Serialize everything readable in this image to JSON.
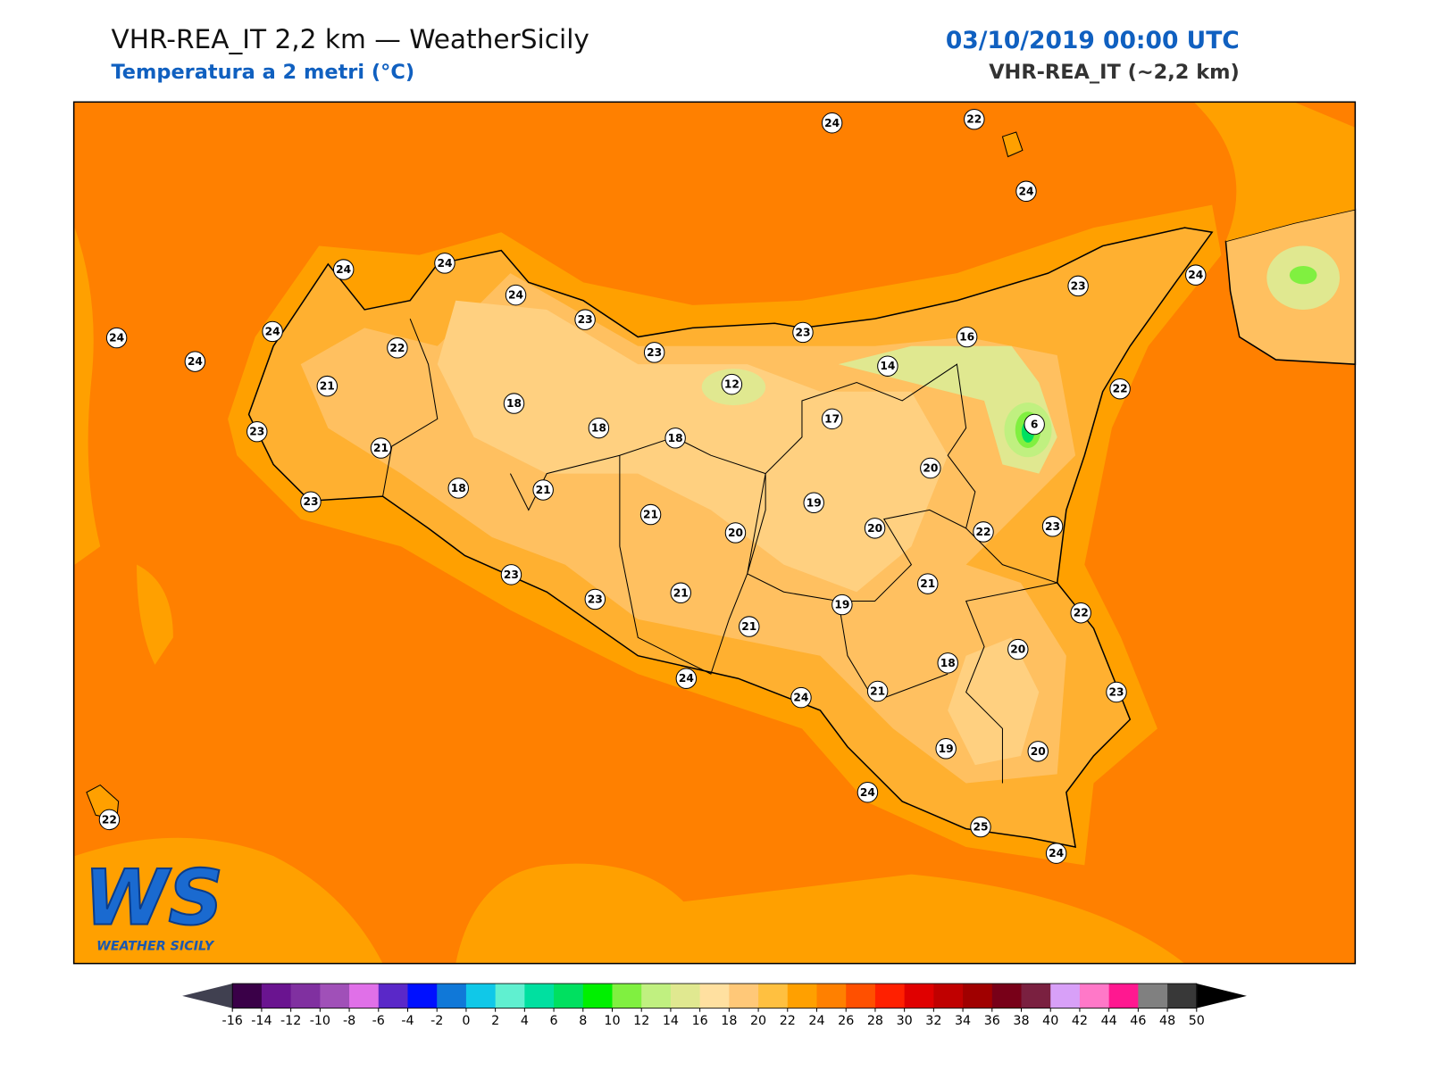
{
  "header": {
    "title": "VHR-REA_IT 2,2 km — WeatherSicily",
    "subtitle": "Temperatura a 2 metri (°C)",
    "datetime": "03/10/2019 00:00 UTC",
    "model": "VHR-REA_IT (~2,2 km)"
  },
  "stations": [
    24,
    22,
    24,
    24,
    24,
    24,
    23,
    23,
    23,
    23,
    24,
    24,
    24,
    24,
    22,
    21,
    23,
    21,
    23,
    18,
    18,
    18,
    12,
    14,
    16,
    22,
    17,
    6,
    20,
    18,
    21,
    21,
    20,
    19,
    20,
    22,
    23,
    23,
    23,
    21,
    21,
    19,
    21,
    22,
    20,
    18,
    24,
    24,
    21,
    23,
    19,
    20,
    24,
    25,
    24,
    22
  ],
  "colorbar": {
    "ticks": [
      -16,
      -14,
      -12,
      -10,
      -8,
      -6,
      -4,
      -2,
      0,
      2,
      4,
      6,
      8,
      10,
      12,
      14,
      16,
      18,
      20,
      22,
      24,
      26,
      28,
      30,
      32,
      34,
      36,
      38,
      40,
      42,
      44,
      46,
      48,
      50
    ],
    "colors": [
      "#3a0048",
      "#6a1490",
      "#8030a0",
      "#a050b8",
      "#e070e8",
      "#5a28c8",
      "#0010ff",
      "#1078d8",
      "#10c8e8",
      "#60f0d0",
      "#00e0a0",
      "#00e060",
      "#00f000",
      "#80f040",
      "#c0f080",
      "#e0e890",
      "#ffe0a0",
      "#ffc878",
      "#ffc040",
      "#ffa000",
      "#ff8000",
      "#ff5000",
      "#ff2000",
      "#e00000",
      "#c00000",
      "#a00000",
      "#780018",
      "#7a2040",
      "#d8a0f8",
      "#ff78c8",
      "#ff1890",
      "#808080",
      "#383838"
    ],
    "under_color": "#404050",
    "over_color": "#000000"
  },
  "logo": {
    "mark": "WS",
    "text": "WEATHER SICILY"
  }
}
